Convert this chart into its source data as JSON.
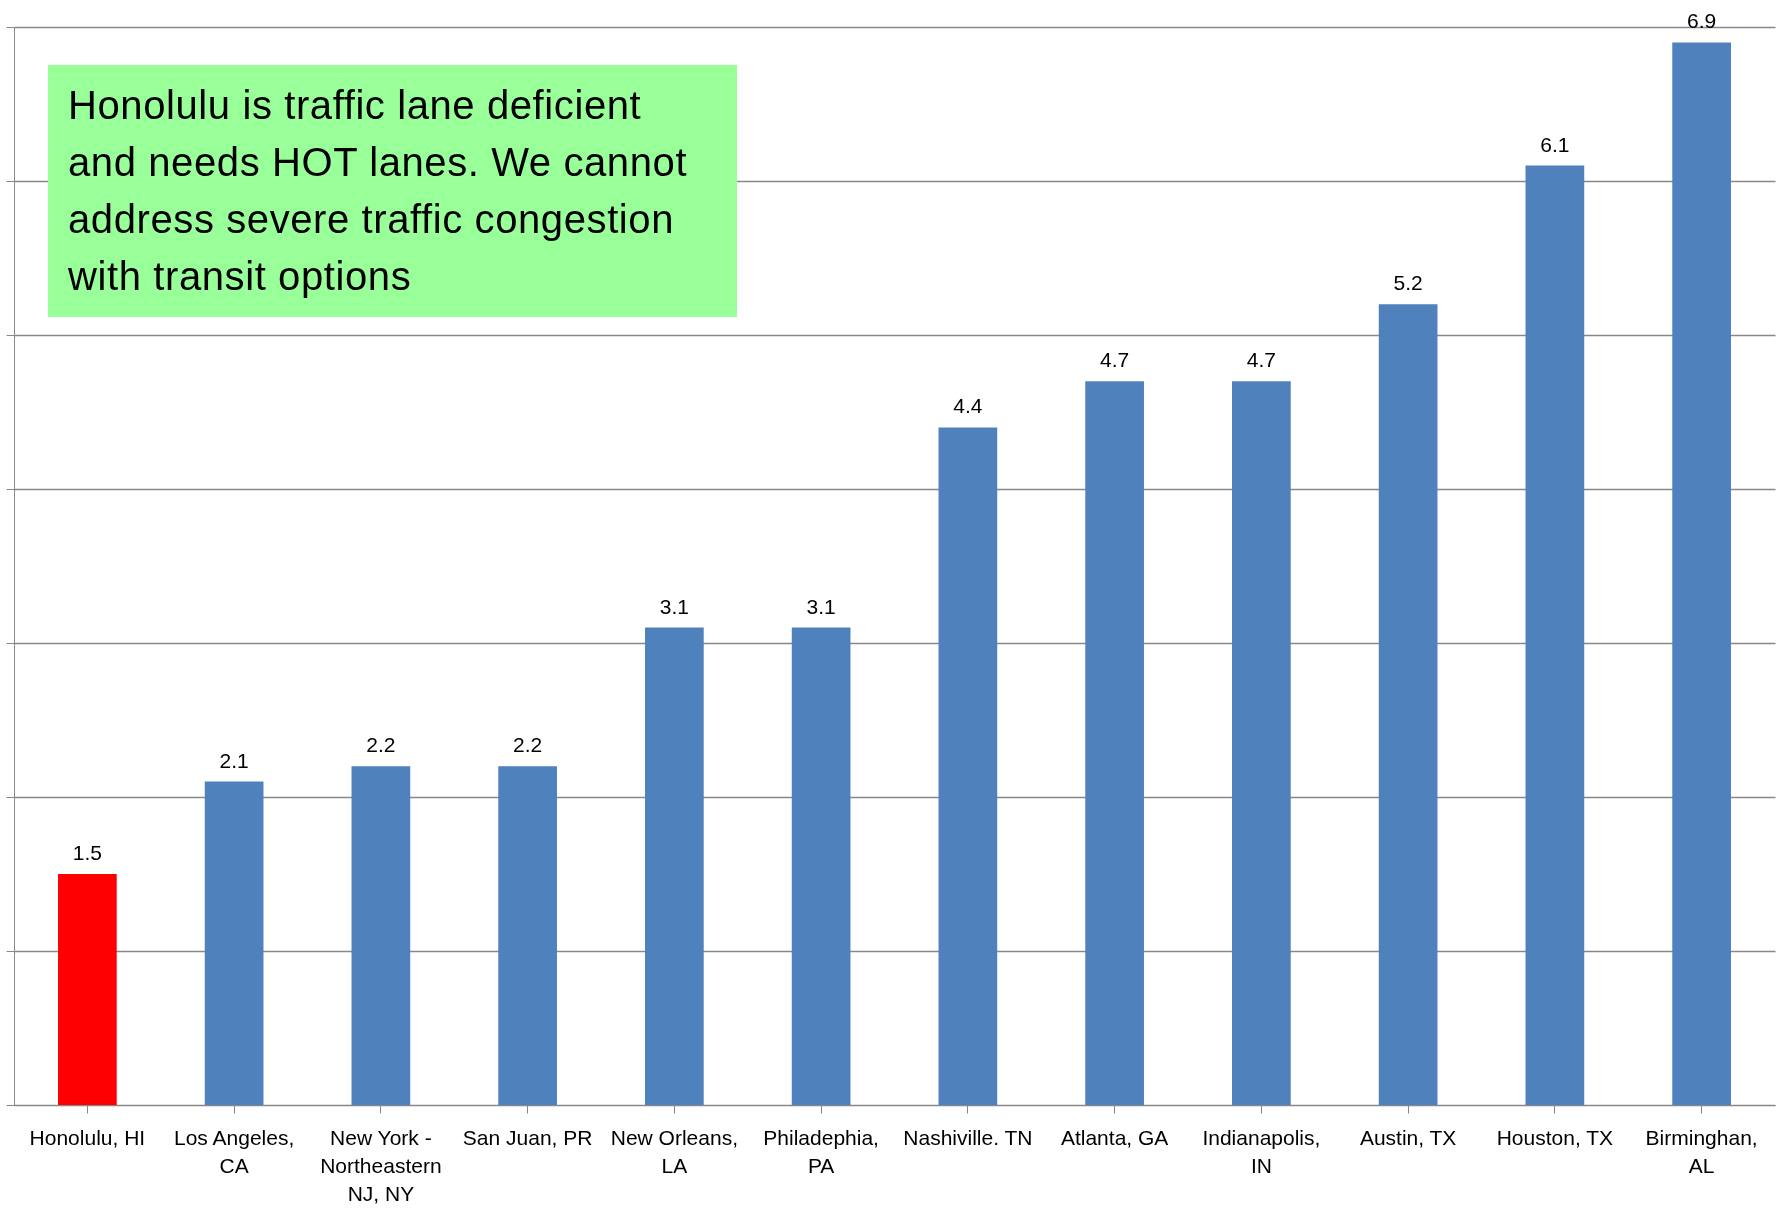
{
  "chart_data": {
    "type": "bar",
    "categories": [
      "Honolulu, HI",
      "Los Angeles, CA",
      "New York - Northeastern NJ, NY",
      "San Juan, PR",
      "New Orleans, LA",
      "Philadephia, PA",
      "Nashiville. TN",
      "Atlanta, GA",
      "Indianapolis, IN",
      "Austin, TX",
      "Houston, TX",
      "Birminghan, AL"
    ],
    "values": [
      1.5,
      2.1,
      2.2,
      2.2,
      3.1,
      3.1,
      4.4,
      4.7,
      4.7,
      5.2,
      6.1,
      6.9
    ],
    "colors": [
      "#ff0000",
      "#4f81bd",
      "#4f81bd",
      "#4f81bd",
      "#4f81bd",
      "#4f81bd",
      "#4f81bd",
      "#4f81bd",
      "#4f81bd",
      "#4f81bd",
      "#4f81bd",
      "#4f81bd"
    ],
    "ylim": [
      0,
      7
    ],
    "yticks": [
      {
        "value": 0,
        "label": null
      },
      {
        "value": 1,
        "label": null
      },
      {
        "value": 2,
        "label": null
      },
      {
        "value": 3,
        "label": null
      },
      {
        "value": 4,
        "label": null
      },
      {
        "value": 5,
        "label": null
      },
      {
        "value": 6,
        "label": null
      },
      {
        "value": 7,
        "label": null
      }
    ],
    "tick_labels": "x",
    "grid": "y",
    "data_labels": true,
    "annotations": [
      "Honolulu is traffic lane deficient and needs HOT lanes. We cannot address severe traffic congestion with transit options"
    ]
  }
}
